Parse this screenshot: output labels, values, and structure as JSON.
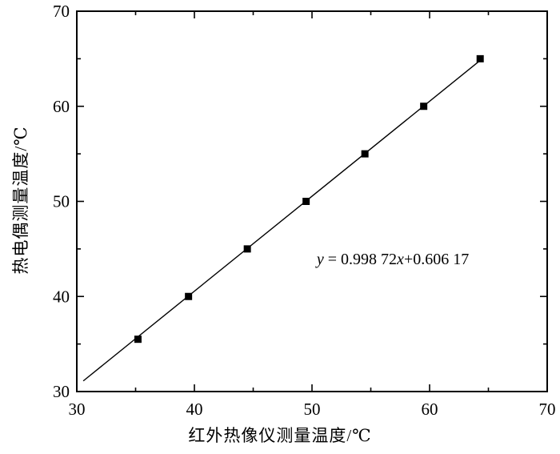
{
  "chart_data": {
    "type": "scatter",
    "title": "",
    "xlabel": "红外热像仪测量温度/℃",
    "ylabel": "热电偶测量温度/℃",
    "xlim": [
      30,
      70
    ],
    "ylim": [
      30,
      70
    ],
    "x_major_ticks": [
      30,
      40,
      50,
      60,
      70
    ],
    "y_major_ticks": [
      30,
      40,
      50,
      60,
      70
    ],
    "minor_tick_step": 5,
    "grid": false,
    "legend": false,
    "series": [
      {
        "name": "measured-points",
        "type": "scatter",
        "marker": "square",
        "color": "#000000",
        "points": [
          [
            35.2,
            35.5
          ],
          [
            39.5,
            40
          ],
          [
            44.5,
            45
          ],
          [
            49.5,
            50
          ],
          [
            54.5,
            55
          ],
          [
            59.5,
            60
          ],
          [
            64.3,
            65
          ]
        ]
      },
      {
        "name": "fit-line",
        "type": "line",
        "color": "#000000",
        "slope": 0.99872,
        "intercept": 0.60617,
        "x_range": [
          30.55,
          64.3
        ]
      }
    ],
    "annotation": {
      "text": "y = 0.998 72x+0.606 17",
      "parts": {
        "y_var": "y",
        "middle": " = 0.998 72",
        "x_var": "x",
        "tail": "+0.606 17"
      },
      "position_data": [
        50.4,
        43.8
      ]
    }
  },
  "colors": {
    "background": "#ffffff",
    "axis": "#000000",
    "text": "#000000"
  }
}
